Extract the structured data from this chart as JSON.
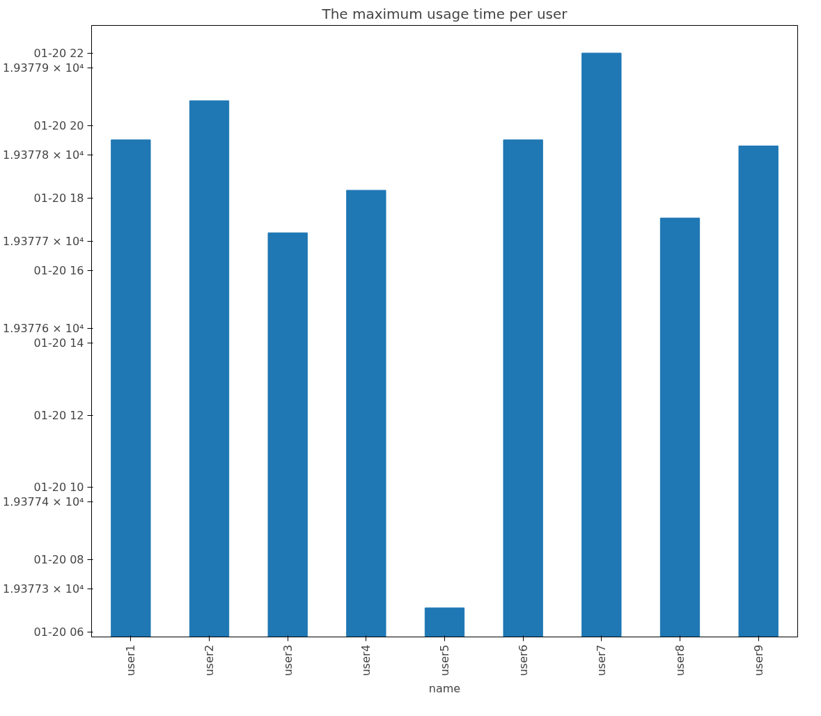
{
  "chart_data": {
    "type": "bar",
    "title": "The maximum usage time per user",
    "xlabel": "name",
    "categories": [
      "user1",
      "user2",
      "user3",
      "user4",
      "user5",
      "user6",
      "user7",
      "user8",
      "user9"
    ],
    "values": [
      19377.817,
      19377.862,
      19377.71,
      19377.759,
      19377.278,
      19377.817,
      19377.917,
      19377.727,
      19377.81
    ],
    "color": "#1f77b4",
    "ylim": [
      19377.2446,
      19377.9488
    ],
    "yticks": [
      {
        "value": 19377.25,
        "label": "01-20 06"
      },
      {
        "value": 19377.3333,
        "label": "01-20 08"
      },
      {
        "value": 19377.4167,
        "label": "01-20 10"
      },
      {
        "value": 19377.5,
        "label": "01-20 12"
      },
      {
        "value": 19377.5833,
        "label": "01-20 14"
      },
      {
        "value": 19377.6667,
        "label": "01-20 16"
      },
      {
        "value": 19377.75,
        "label": "01-20 18"
      },
      {
        "value": 19377.8333,
        "label": "01-20 20"
      },
      {
        "value": 19377.9167,
        "label": "01-20 22"
      },
      {
        "value": 19377.3,
        "label": "1.93773 × 10⁴"
      },
      {
        "value": 19377.4,
        "label": "1.93774 × 10⁴"
      },
      {
        "value": 19377.6,
        "label": "1.93776 × 10⁴"
      },
      {
        "value": 19377.7,
        "label": "1.93777 × 10⁴"
      },
      {
        "value": 19377.8,
        "label": "1.93778 × 10⁴"
      },
      {
        "value": 19377.9,
        "label": "1.93779 × 10⁴"
      }
    ],
    "grid": false
  }
}
